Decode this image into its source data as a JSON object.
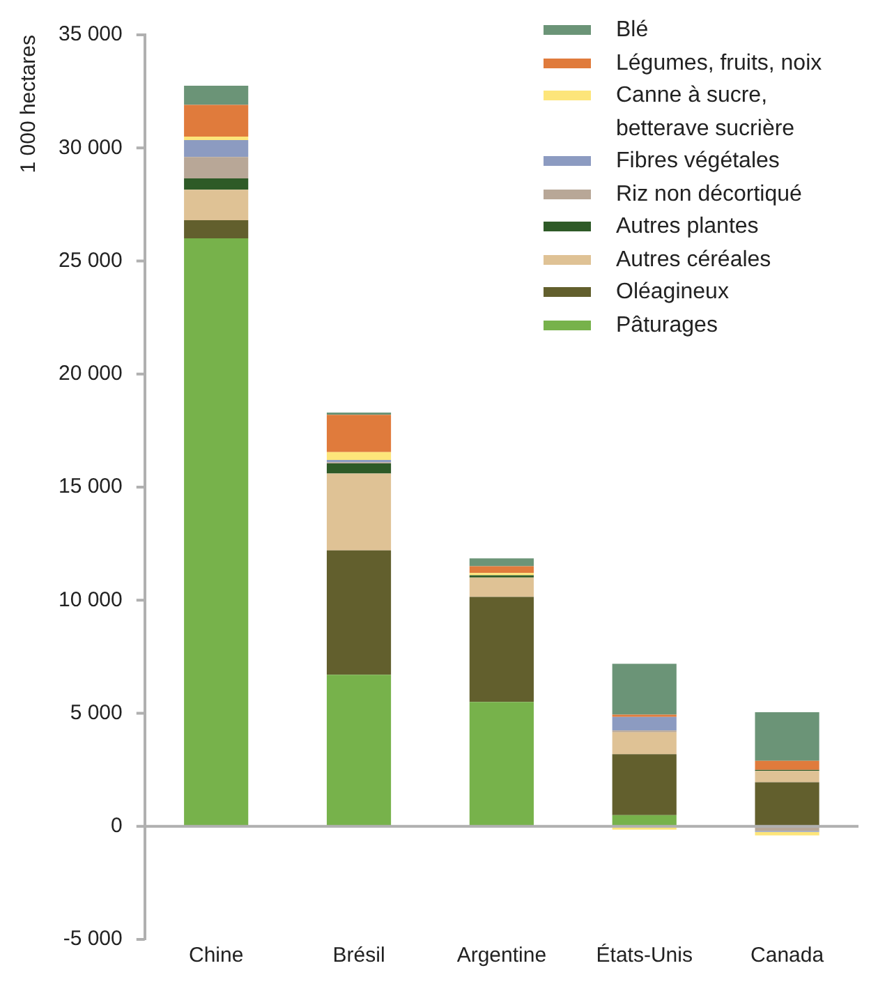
{
  "chart_data": {
    "type": "bar",
    "stacked": true,
    "ylabel": "1 000 hectares",
    "categories": [
      "Chine",
      "Brésil",
      "Argentine",
      "États-Unis",
      "Canada"
    ],
    "ylim": [
      -5000,
      35000
    ],
    "yticks": [
      {
        "value": -5000,
        "label": "-5 000"
      },
      0,
      {
        "value": 5000,
        "label": "5 000"
      },
      {
        "value": 10000,
        "label": "10 000"
      },
      {
        "value": 15000,
        "label": "15 000"
      },
      {
        "value": 20000,
        "label": "20 000"
      },
      {
        "value": 25000,
        "label": "25 000"
      },
      {
        "value": 30000,
        "label": "30 000"
      },
      {
        "value": 35000,
        "label": "35 000"
      }
    ],
    "legend": "top right",
    "series": [
      {
        "name": "Pâturages",
        "color": "#77b24b",
        "values": [
          26000,
          6700,
          5500,
          490,
          50
        ]
      },
      {
        "name": "Oléagineux",
        "color": "#625f2d",
        "values": [
          800,
          5500,
          4650,
          2700,
          1900
        ]
      },
      {
        "name": "Autres céréales",
        "color": "#dfc295",
        "values": [
          1350,
          3400,
          850,
          970,
          500
        ]
      },
      {
        "name": "Autres plantes",
        "color": "#2e5a27",
        "values": [
          500,
          450,
          100,
          null,
          50
        ]
      },
      {
        "name": "Riz non décortiqué",
        "color": "#b8a797",
        "values": [
          950,
          50,
          null,
          80,
          -200
        ]
      },
      {
        "name": "Fibres végétales",
        "color": "#8c9bc1",
        "values": [
          750,
          100,
          null,
          600,
          -50
        ]
      },
      {
        "name": "Canne à sucre, betterave sucrière",
        "color": "#fde57a",
        "values": [
          150,
          350,
          100,
          -150,
          -150
        ]
      },
      {
        "name": "Légumes, fruits, noix",
        "color": "#e07b3c",
        "values": [
          1400,
          1650,
          300,
          100,
          400
        ]
      },
      {
        "name": "Blé",
        "color": "#6b9477",
        "values": [
          850,
          100,
          350,
          2250,
          2150
        ]
      }
    ]
  }
}
